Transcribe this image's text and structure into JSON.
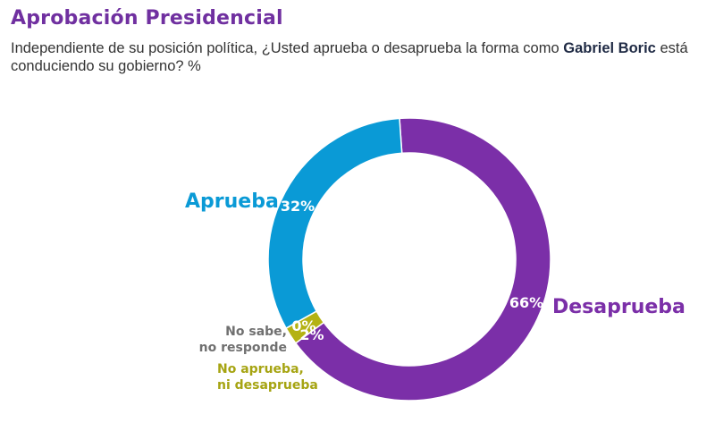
{
  "title": "Aprobación Presidencial",
  "subtitle": {
    "text_before": "Independiente de su posición política, ¿Usted aprueba o desaprueba la forma como ",
    "name": "Gabriel Boric",
    "text_after": " está conduciendo su gobierno? %"
  },
  "chart_data": {
    "type": "pie",
    "style": "donut",
    "slices": [
      {
        "name": "Desaprueba",
        "value": 66,
        "label": "66%",
        "color": "#7b2fa8"
      },
      {
        "name": "No aprueba, ni desaprueba",
        "value": 2,
        "label": "2%",
        "color": "#b4b214"
      },
      {
        "name": "No sabe, no responde",
        "value": 0,
        "label": "0%",
        "color": "#707070"
      },
      {
        "name": "Aprueba",
        "value": 32,
        "label": "32%",
        "color": "#0a9ad6"
      }
    ]
  },
  "labels": {
    "aprueba": "Aprueba",
    "desaprueba": "Desaprueba",
    "ns_line1": "No sabe,",
    "ns_line2": "no responde",
    "na_line1": "No aprueba,",
    "na_line2": "ni desaprueba"
  }
}
